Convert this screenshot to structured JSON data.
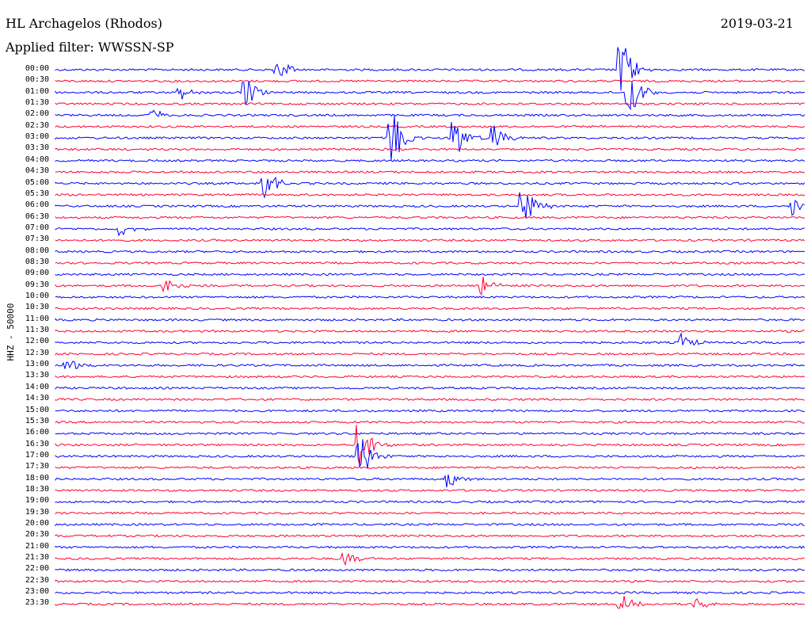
{
  "header": {
    "station": "HL Archagelos (Rhodos)",
    "filter": "Applied filter: WWSSN-SP",
    "date": "2019-03-21",
    "channel": "HHZ - 50000"
  },
  "colors": {
    "blue": "#0000ff",
    "red": "#ff0033"
  },
  "rows": [
    {
      "time": "00:00",
      "color": "blue"
    },
    {
      "time": "00:30",
      "color": "red"
    },
    {
      "time": "01:00",
      "color": "blue"
    },
    {
      "time": "01:30",
      "color": "red"
    },
    {
      "time": "02:00",
      "color": "blue"
    },
    {
      "time": "02:30",
      "color": "red"
    },
    {
      "time": "03:00",
      "color": "blue"
    },
    {
      "time": "03:30",
      "color": "red"
    },
    {
      "time": "04:00",
      "color": "blue"
    },
    {
      "time": "04:30",
      "color": "red"
    },
    {
      "time": "05:00",
      "color": "blue"
    },
    {
      "time": "05:30",
      "color": "red"
    },
    {
      "time": "06:00",
      "color": "blue"
    },
    {
      "time": "06:30",
      "color": "red"
    },
    {
      "time": "07:00",
      "color": "blue"
    },
    {
      "time": "07:30",
      "color": "red"
    },
    {
      "time": "08:00",
      "color": "blue"
    },
    {
      "time": "08:30",
      "color": "red"
    },
    {
      "time": "09:00",
      "color": "blue"
    },
    {
      "time": "09:30",
      "color": "red"
    },
    {
      "time": "10:00",
      "color": "blue"
    },
    {
      "time": "10:30",
      "color": "red"
    },
    {
      "time": "11:00",
      "color": "blue"
    },
    {
      "time": "11:30",
      "color": "red"
    },
    {
      "time": "12:00",
      "color": "blue"
    },
    {
      "time": "12:30",
      "color": "red"
    },
    {
      "time": "13:00",
      "color": "blue"
    },
    {
      "time": "13:30",
      "color": "red"
    },
    {
      "time": "14:00",
      "color": "blue"
    },
    {
      "time": "14:30",
      "color": "red"
    },
    {
      "time": "15:00",
      "color": "blue"
    },
    {
      "time": "15:30",
      "color": "red"
    },
    {
      "time": "16:00",
      "color": "blue"
    },
    {
      "time": "16:30",
      "color": "red"
    },
    {
      "time": "17:00",
      "color": "blue"
    },
    {
      "time": "17:30",
      "color": "red"
    },
    {
      "time": "18:00",
      "color": "blue"
    },
    {
      "time": "18:30",
      "color": "red"
    },
    {
      "time": "19:00",
      "color": "blue"
    },
    {
      "time": "19:30",
      "color": "red"
    },
    {
      "time": "20:00",
      "color": "blue"
    },
    {
      "time": "20:30",
      "color": "red"
    },
    {
      "time": "21:00",
      "color": "blue"
    },
    {
      "time": "21:30",
      "color": "red"
    },
    {
      "time": "22:00",
      "color": "blue"
    },
    {
      "time": "22:30",
      "color": "red"
    },
    {
      "time": "23:00",
      "color": "blue"
    },
    {
      "time": "23:30",
      "color": "red"
    }
  ]
}
